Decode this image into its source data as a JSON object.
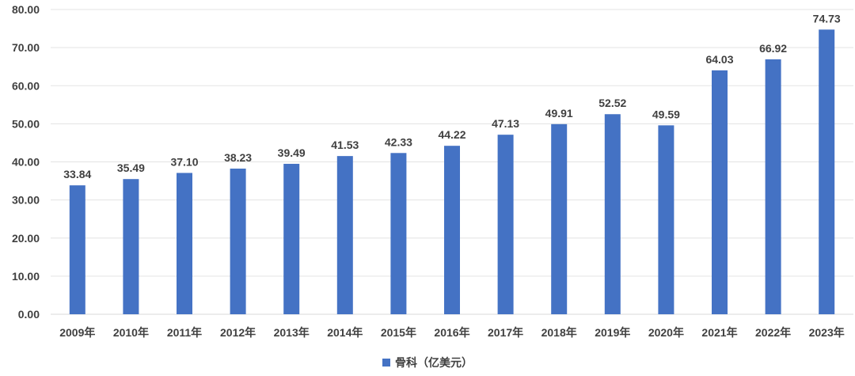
{
  "chart_data": {
    "type": "bar",
    "categories": [
      "2009年",
      "2010年",
      "2011年",
      "2012年",
      "2013年",
      "2014年",
      "2015年",
      "2016年",
      "2017年",
      "2018年",
      "2019年",
      "2020年",
      "2021年",
      "2022年",
      "2023年"
    ],
    "series": [
      {
        "name": "骨科（亿美元）",
        "values": [
          33.84,
          35.49,
          37.1,
          38.23,
          39.49,
          41.53,
          42.33,
          44.22,
          47.13,
          49.91,
          52.52,
          49.59,
          64.03,
          66.92,
          74.73
        ],
        "color": "#4472C4"
      }
    ],
    "y_ticks": [
      "0.00",
      "10.00",
      "20.00",
      "30.00",
      "40.00",
      "50.00",
      "60.00",
      "70.00",
      "80.00"
    ],
    "ylim": [
      0,
      80
    ],
    "title": "",
    "xlabel": "",
    "ylabel": "",
    "grid": true,
    "legend_position": "bottom"
  }
}
